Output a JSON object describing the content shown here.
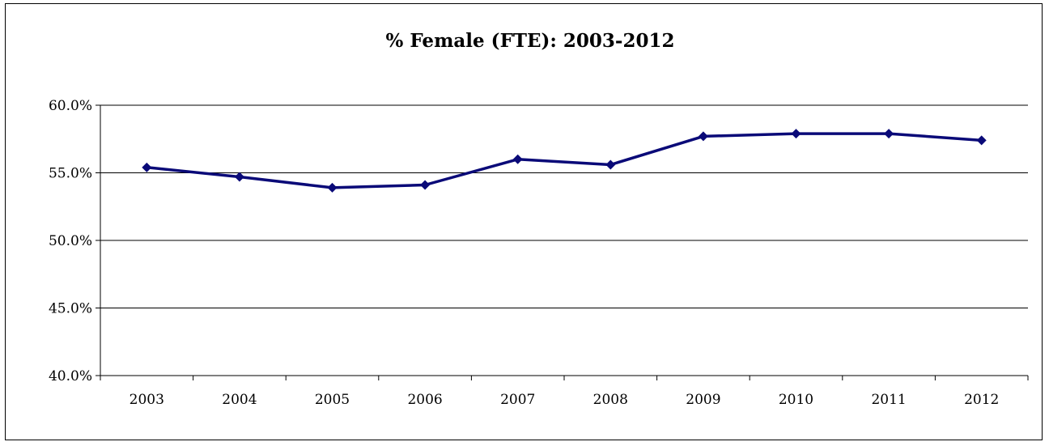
{
  "chart_data": {
    "type": "line",
    "title": "% Female (FTE): 2003-2012",
    "xlabel": "",
    "ylabel": "",
    "categories": [
      "2003",
      "2004",
      "2005",
      "2006",
      "2007",
      "2008",
      "2009",
      "2010",
      "2011",
      "2012"
    ],
    "series": [
      {
        "values": [
          55.4,
          54.7,
          53.9,
          54.1,
          56.0,
          55.6,
          57.7,
          57.9,
          57.9,
          57.4
        ],
        "color": "#0a0a78",
        "marker": "diamond"
      }
    ],
    "ylim": [
      40.0,
      60.0
    ],
    "yticks": [
      40.0,
      45.0,
      50.0,
      55.0,
      60.0
    ],
    "ytick_labels": [
      "40.0%",
      "45.0%",
      "50.0%",
      "55.0%",
      "60.0%"
    ],
    "grid": "horizontal",
    "legend": "none"
  }
}
